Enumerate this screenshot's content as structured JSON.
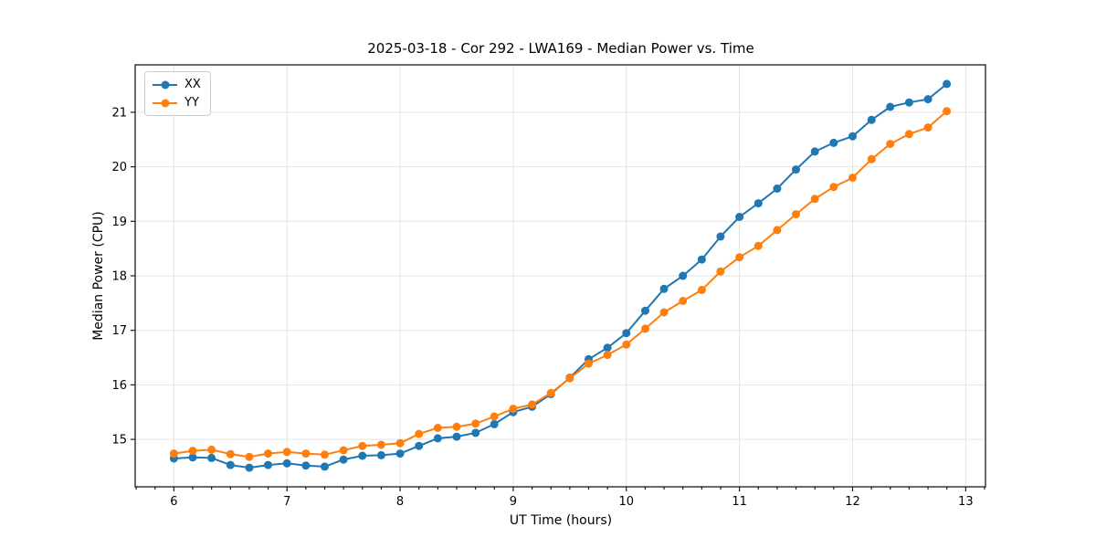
{
  "chart_data": {
    "type": "line",
    "title": "2025-03-18 - Cor 292 - LWA169 - Median Power vs. Time",
    "xlabel": "UT Time (hours)",
    "ylabel": "Median Power (CPU)",
    "xlim": [
      5.658,
      13.175
    ],
    "ylim": [
      14.13,
      21.87
    ],
    "xticks": [
      6,
      7,
      8,
      9,
      10,
      11,
      12,
      13
    ],
    "yticks": [
      15,
      16,
      17,
      18,
      19,
      20,
      21
    ],
    "x_minor_step": 0.16667,
    "grid": true,
    "legend_position": "upper left",
    "x": [
      6.0,
      6.167,
      6.333,
      6.5,
      6.667,
      6.833,
      7.0,
      7.167,
      7.333,
      7.5,
      7.667,
      7.833,
      8.0,
      8.167,
      8.333,
      8.5,
      8.667,
      8.833,
      9.0,
      9.167,
      9.333,
      9.5,
      9.667,
      9.833,
      10.0,
      10.167,
      10.333,
      10.5,
      10.667,
      10.833,
      11.0,
      11.167,
      11.333,
      11.5,
      11.667,
      11.833,
      12.0,
      12.167,
      12.333,
      12.5,
      12.667,
      12.833
    ],
    "series": [
      {
        "name": "XX",
        "color": "#1f77b4",
        "values": [
          14.65,
          14.67,
          14.66,
          14.53,
          14.48,
          14.53,
          14.56,
          14.52,
          14.5,
          14.63,
          14.7,
          14.71,
          14.74,
          14.88,
          15.02,
          15.05,
          15.12,
          15.28,
          15.5,
          15.6,
          15.83,
          16.13,
          16.47,
          16.68,
          16.95,
          17.36,
          17.76,
          18.0,
          18.3,
          18.72,
          19.08,
          19.33,
          19.6,
          19.95,
          20.28,
          20.44,
          20.56,
          20.86,
          21.1,
          21.18,
          21.24,
          21.52
        ]
      },
      {
        "name": "YY",
        "color": "#ff7f0e",
        "values": [
          14.74,
          14.79,
          14.81,
          14.73,
          14.68,
          14.74,
          14.77,
          14.74,
          14.72,
          14.8,
          14.88,
          14.9,
          14.93,
          15.1,
          15.21,
          15.23,
          15.29,
          15.42,
          15.56,
          15.64,
          15.85,
          16.12,
          16.39,
          16.55,
          16.74,
          17.03,
          17.33,
          17.54,
          17.74,
          18.08,
          18.34,
          18.55,
          18.84,
          19.13,
          19.41,
          19.63,
          19.8,
          20.14,
          20.42,
          20.6,
          20.72,
          21.02
        ]
      }
    ]
  }
}
